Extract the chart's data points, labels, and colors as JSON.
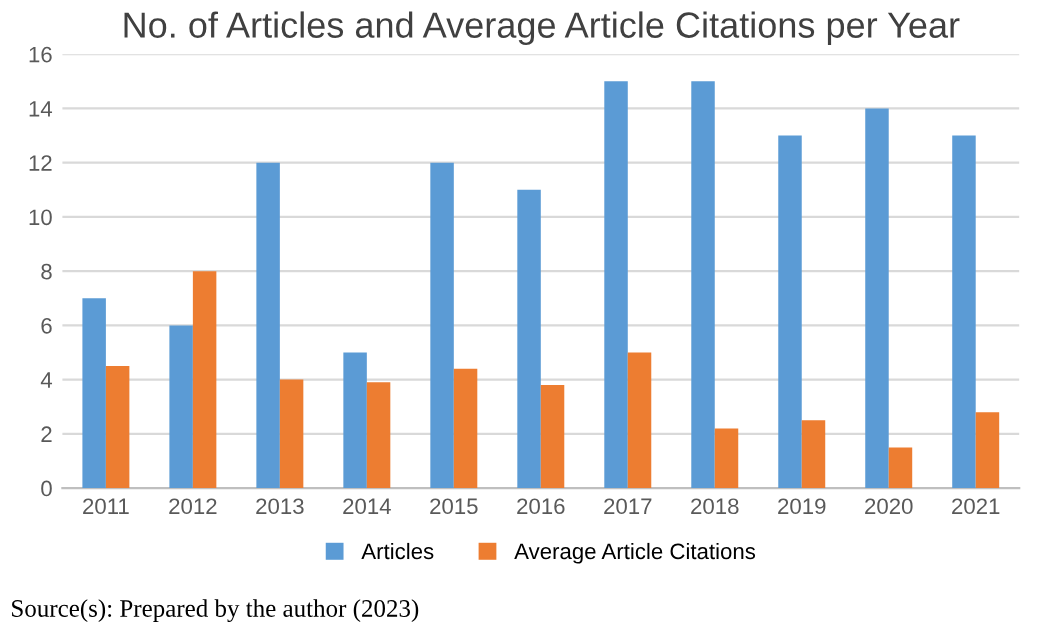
{
  "chart_data": {
    "type": "bar",
    "title": "No. of Articles and Average Article Citations per Year",
    "categories": [
      "2011",
      "2012",
      "2013",
      "2014",
      "2015",
      "2016",
      "2017",
      "2018",
      "2019",
      "2020",
      "2021"
    ],
    "series": [
      {
        "name": "Articles",
        "color": "#5b9bd5",
        "values": [
          7,
          6,
          12,
          5,
          12,
          11,
          15,
          15,
          13,
          14,
          13
        ]
      },
      {
        "name": "Average Article Citations",
        "color": "#ed7d31",
        "values": [
          4.5,
          8,
          4,
          3.9,
          4.4,
          3.8,
          5,
          2.2,
          2.5,
          1.5,
          2.8
        ]
      }
    ],
    "ylim": [
      0,
      16
    ],
    "yticks": [
      0,
      2,
      4,
      6,
      8,
      10,
      12,
      14,
      16
    ],
    "grid": "y",
    "legend": "bottom",
    "annotations": [
      "Source(s): Prepared by the author (2023)"
    ]
  }
}
